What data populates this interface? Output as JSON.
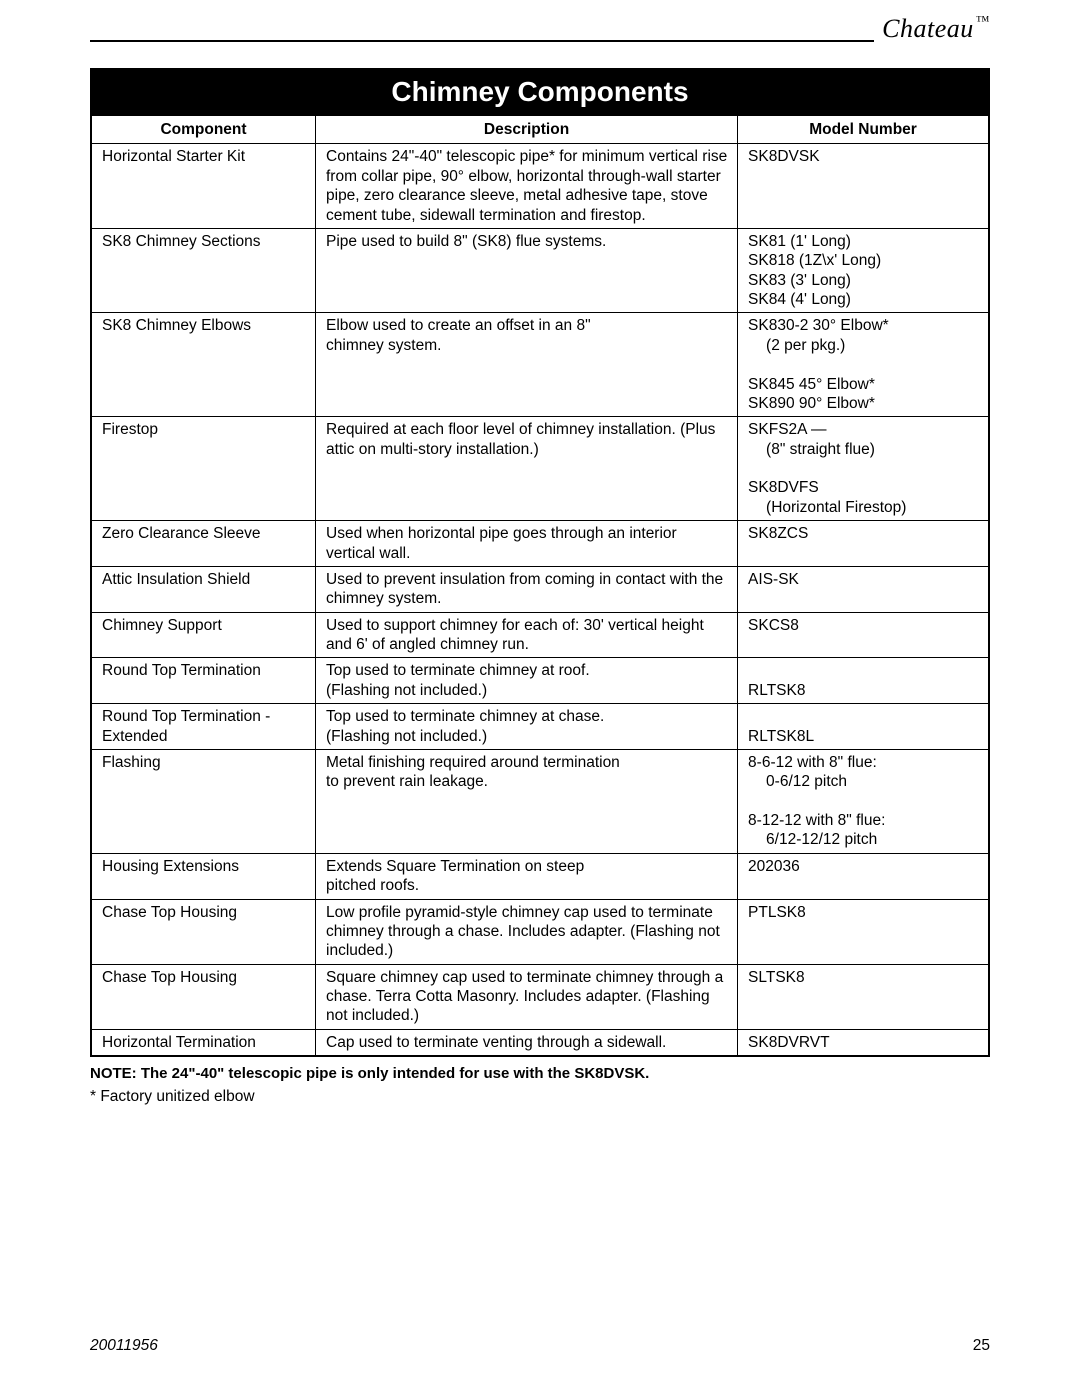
{
  "brand": {
    "name": "Chateau",
    "tm": "™"
  },
  "title": "Chimney Components",
  "columns": [
    "Component",
    "Description",
    "Model Number"
  ],
  "col_widths_pct": [
    25,
    47,
    28
  ],
  "border_color": "#000000",
  "title_bg": "#000000",
  "title_fg": "#ffffff",
  "font_size_body": 15.5,
  "font_size_title": 28,
  "rows": [
    {
      "component": "Horizontal Starter Kit",
      "description": "Contains 24\"-40\" telescopic pipe* for minimum vertical rise from collar pipe, 90° elbow, horizontal through-wall starter pipe, zero clearance sleeve, metal adhesive tape, stove cement tube, sidewall termination and firestop.",
      "model": "SK8DVSK"
    },
    {
      "component": "SK8 Chimney Sections",
      "description": "Pipe used to build 8\" (SK8) flue systems.",
      "model": "SK81 (1' Long)\nSK818 (1Z\\x' Long)\nSK83 (3' Long)\nSK84 (4' Long)"
    },
    {
      "component": "SK8 Chimney Elbows",
      "description": "Elbow used to create an offset in an 8\"\nchimney system.",
      "model": "SK830-2 30° Elbow*\n  (2 per pkg.)\nSK845 45° Elbow*\nSK890 90° Elbow*"
    },
    {
      "component": "Firestop",
      "description": "Required at each floor level of chimney installation. (Plus attic on multi-story installation.)",
      "model": "SKFS2A —\n  (8\" straight flue)\nSK8DVFS\n  (Horizontal Firestop)"
    },
    {
      "component": "Zero Clearance Sleeve",
      "description": "Used when horizontal pipe goes through an interior vertical wall.",
      "model": "SK8ZCS"
    },
    {
      "component": "Attic Insulation Shield",
      "description": "Used to prevent insulation from coming in contact with the chimney system.",
      "model": "AIS-SK"
    },
    {
      "component": "Chimney Support",
      "description": "Used to support chimney for each of: 30' vertical height and 6' of angled chimney run.",
      "model": "SKCS8"
    },
    {
      "component": "Round Top Termination",
      "description": "Top used to terminate chimney at roof.\n(Flashing not included.)",
      "model": "\nRLTSK8"
    },
    {
      "component": "Round Top Termination - Extended",
      "description": "Top used to terminate chimney at chase.\n(Flashing not included.)",
      "model": "\nRLTSK8L"
    },
    {
      "component": "Flashing",
      "description": "Metal finishing required around termination\nto prevent rain leakage.",
      "model": "8-6-12 with 8\" flue:\n  0-6/12 pitch\n8-12-12 with 8\" flue:\n  6/12-12/12 pitch"
    },
    {
      "component": "Housing Extensions",
      "description": "Extends Square Termination on steep\npitched roofs.",
      "model": "202036"
    },
    {
      "component": "Chase Top Housing",
      "description": "Low profile pyramid-style chimney cap used to terminate chimney through a chase. Includes adapter. (Flashing not included.)",
      "model": "PTLSK8"
    },
    {
      "component": "Chase Top Housing",
      "description": "Square chimney cap used to terminate chimney through a chase. Terra Cotta Masonry. Includes adapter. (Flashing not included.)",
      "model": "SLTSK8"
    },
    {
      "component": "Horizontal Termination",
      "description": "Cap used to terminate venting through a sidewall.",
      "model": "SK8DVRVT"
    }
  ],
  "note_label": "NOTE:",
  "note_text": "The 24\"-40\" telescopic pipe is only intended for use with the SK8DVSK.",
  "footnote": "* Factory unitized elbow",
  "footer": {
    "docnum": "20011956",
    "page": "25"
  }
}
